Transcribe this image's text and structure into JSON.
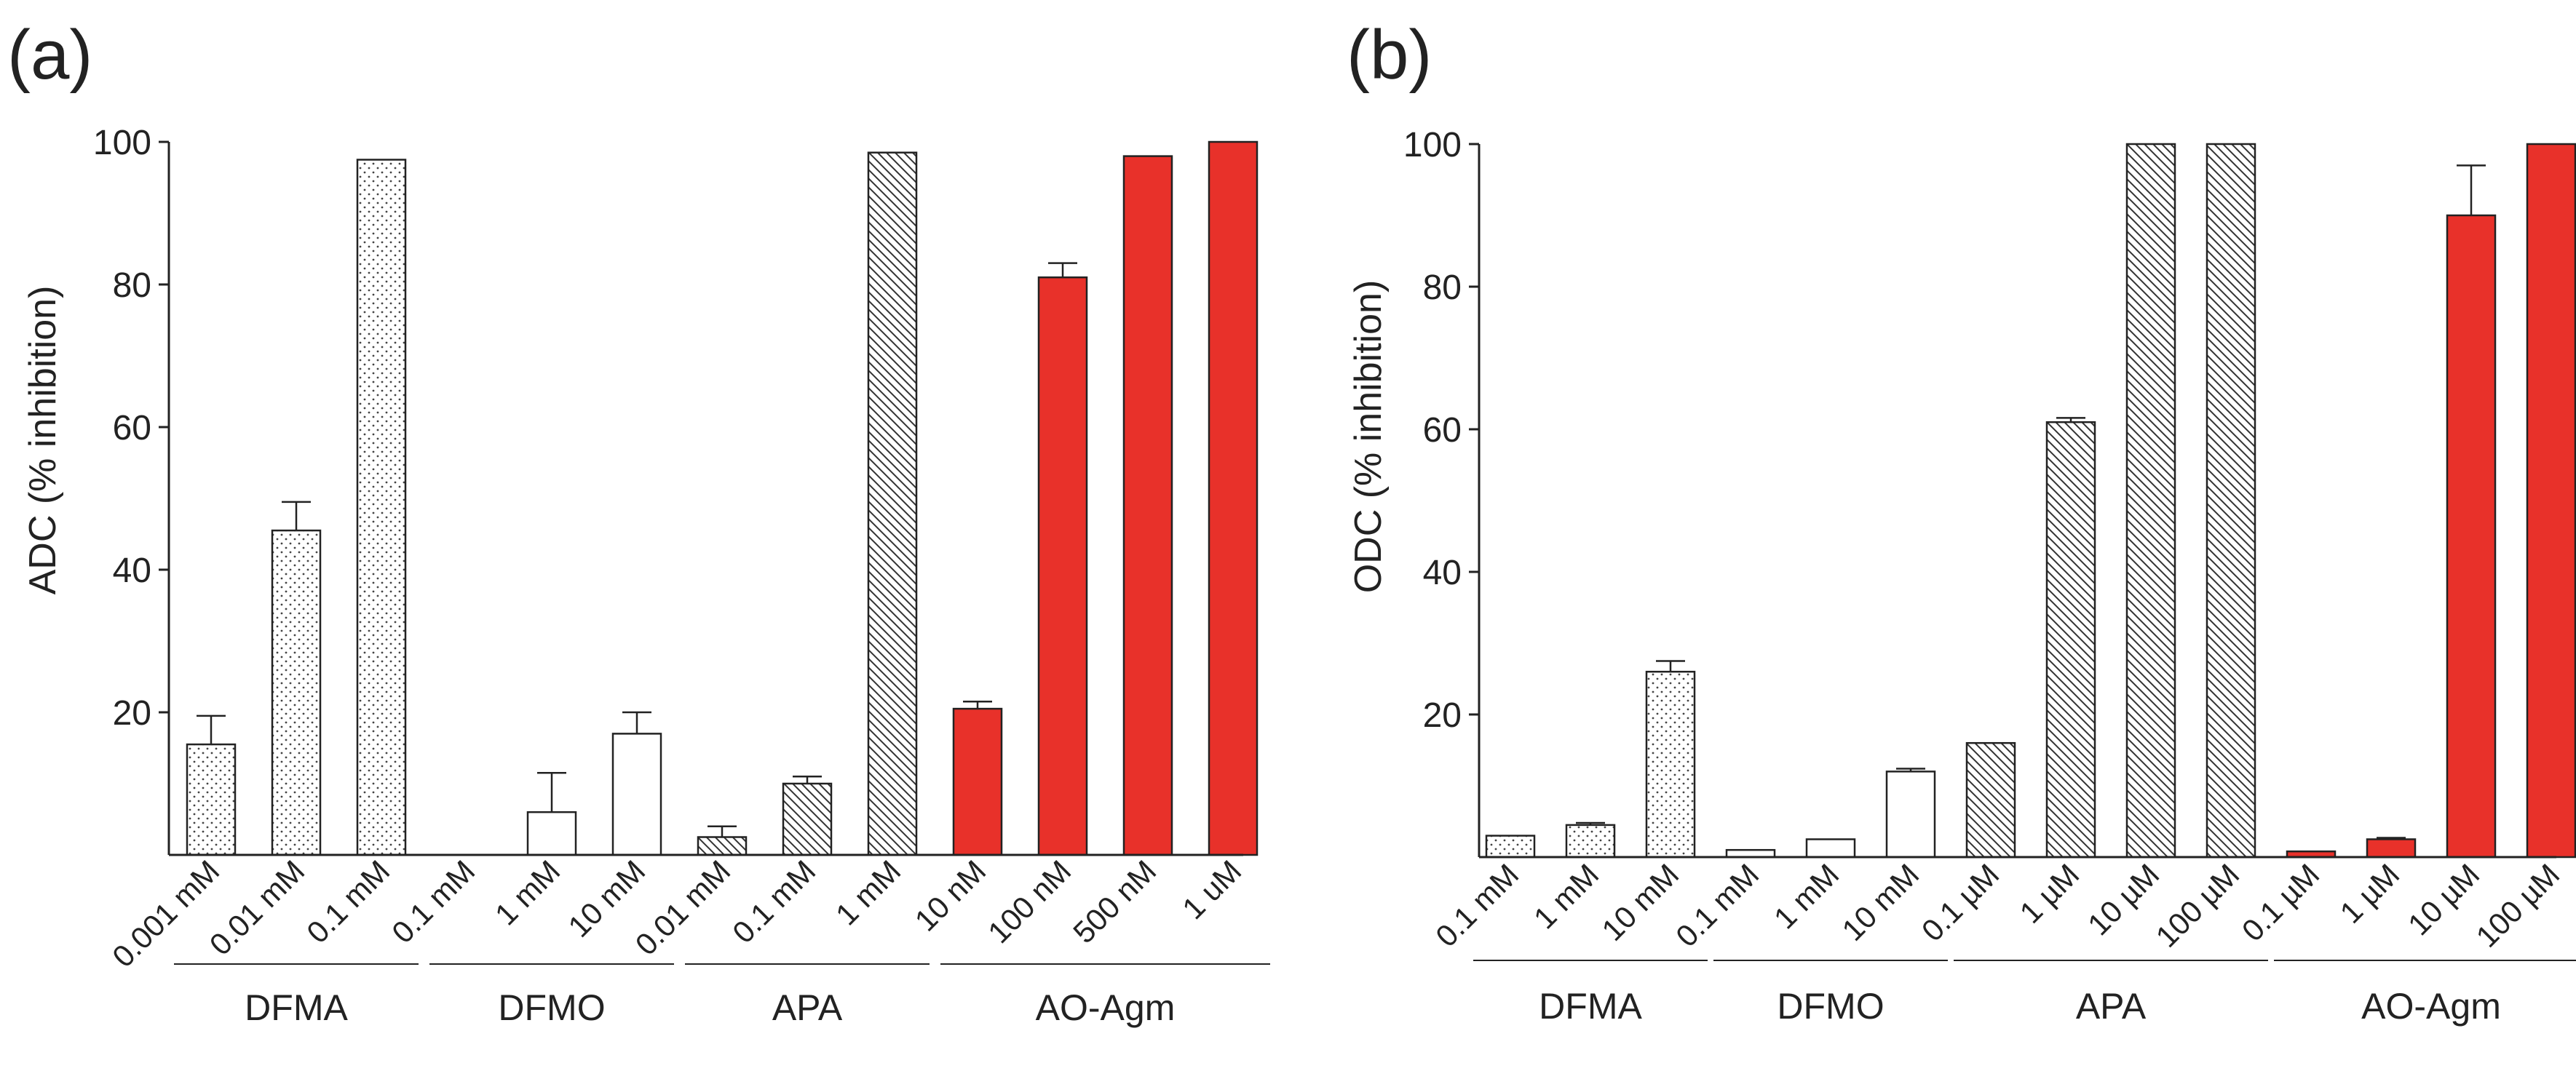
{
  "chart_data": [
    {
      "panel_label": "(a)",
      "type": "bar",
      "ylabel": "ADC (% inhibition)",
      "ylim": [
        0,
        100
      ],
      "yticks": [
        20,
        40,
        60,
        80,
        100
      ],
      "categories": [
        "0.001 mM",
        "0.01 mM",
        "0.1 mM",
        "0.1 mM",
        "1 mM",
        "10 mM",
        "0.01 mM",
        "0.1 mM",
        "1 mM",
        "10 nM",
        "100 nM",
        "500 nM",
        "1 uM"
      ],
      "values": [
        15.5,
        45.5,
        97.5,
        0,
        6,
        17,
        2.5,
        10,
        98.5,
        20.5,
        81,
        98,
        100
      ],
      "errors": [
        4,
        4,
        0,
        0,
        5.5,
        3,
        1.5,
        1,
        0,
        1,
        2,
        0,
        0
      ],
      "groups": [
        {
          "name": "DFMA",
          "start": 0,
          "end": 3,
          "pattern": "dots"
        },
        {
          "name": "DFMO",
          "start": 3,
          "end": 6,
          "pattern": "white"
        },
        {
          "name": "APA",
          "start": 6,
          "end": 9,
          "pattern": "hatch"
        },
        {
          "name": "AO-Agm",
          "start": 9,
          "end": 13,
          "pattern": "red"
        }
      ]
    },
    {
      "panel_label": "(b)",
      "type": "bar",
      "ylabel": "ODC (% inhibition)",
      "ylim": [
        0,
        100
      ],
      "yticks": [
        20,
        40,
        60,
        80,
        100
      ],
      "categories": [
        "0.1 mM",
        "1 mM",
        "10 mM",
        "0.1 mM",
        "1 mM",
        "10 mM",
        "0.1 µM",
        "1 µM",
        "10 µM",
        "100 µM",
        "0.1 µM",
        "1 µM",
        "10 µM",
        "100 µM"
      ],
      "values": [
        3,
        4.5,
        26,
        1,
        2.5,
        12,
        16,
        61,
        100,
        100,
        0.8,
        2.5,
        90,
        100
      ],
      "errors": [
        0,
        0.3,
        1.5,
        0,
        0,
        0.4,
        0,
        0.6,
        0,
        0,
        0,
        0.2,
        7,
        0
      ],
      "groups": [
        {
          "name": "DFMA",
          "start": 0,
          "end": 3,
          "pattern": "dots"
        },
        {
          "name": "DFMO",
          "start": 3,
          "end": 6,
          "pattern": "white"
        },
        {
          "name": "APA",
          "start": 6,
          "end": 10,
          "pattern": "hatch"
        },
        {
          "name": "AO-Agm",
          "start": 10,
          "end": 14,
          "pattern": "red"
        }
      ]
    }
  ],
  "colors": {
    "red_fill": "#e8312a",
    "axis": "#222222",
    "white_fill": "#ffffff"
  }
}
